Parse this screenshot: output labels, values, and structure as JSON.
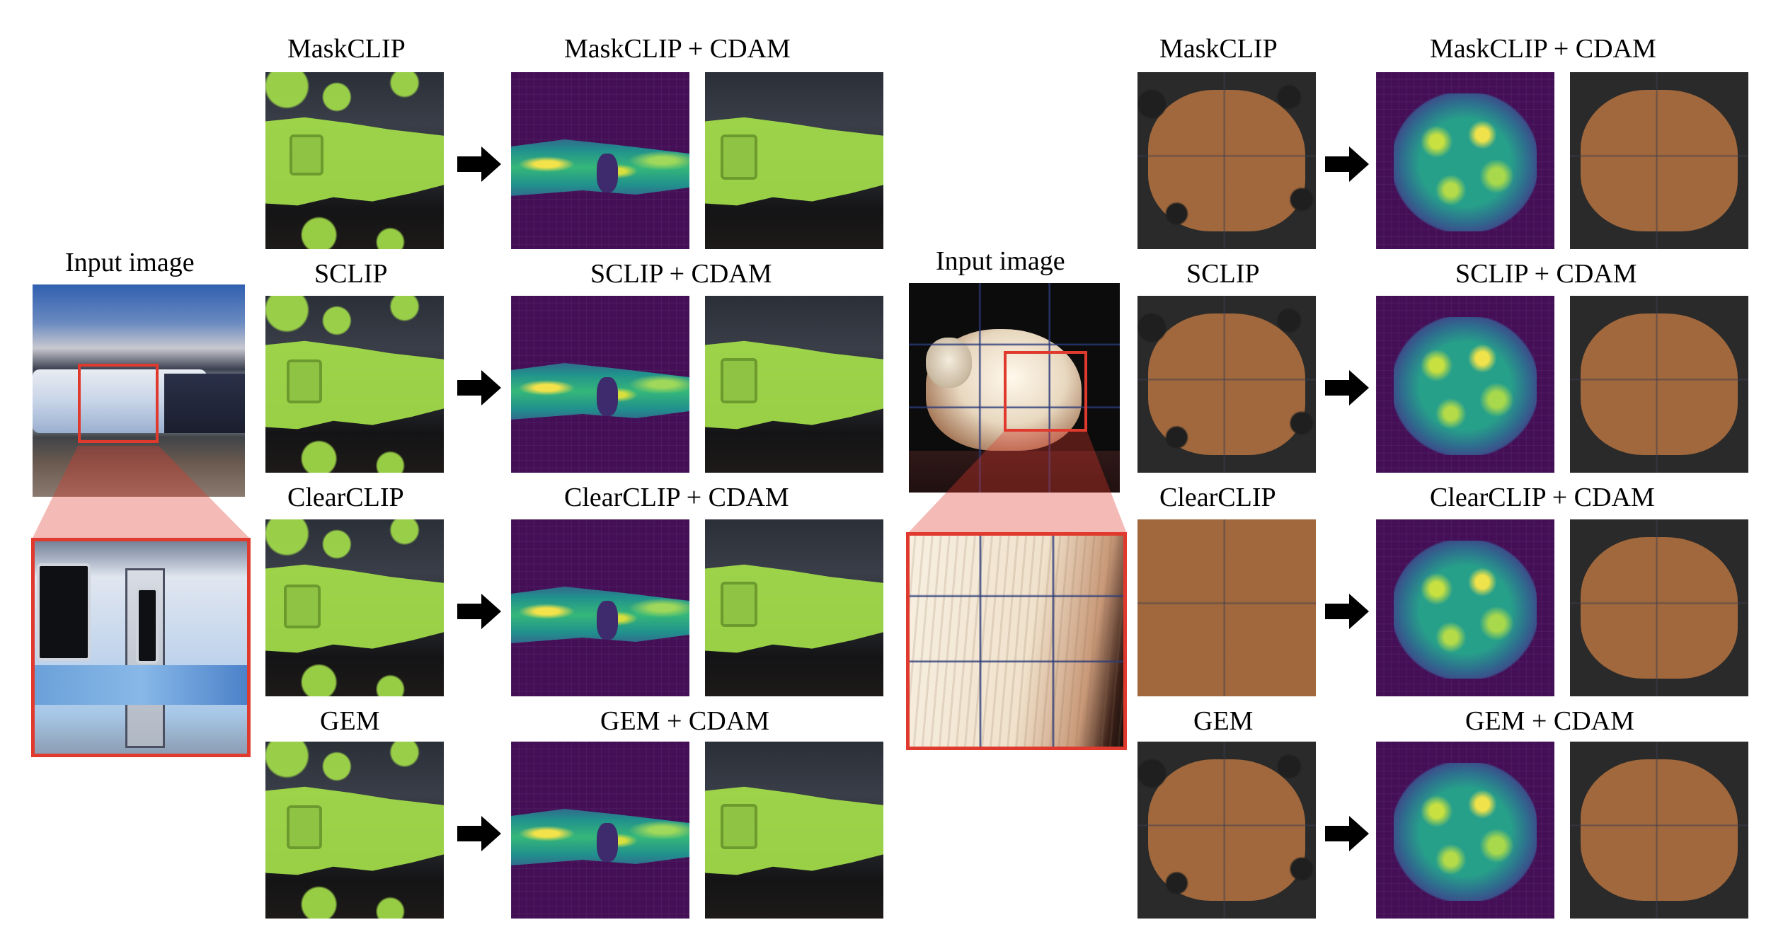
{
  "left_group": {
    "input_label": "Input image",
    "rows": [
      {
        "method": "MaskCLIP",
        "cdam": "MaskCLIP  + CDAM"
      },
      {
        "method": "SCLIP",
        "cdam": "SCLIP  + CDAM"
      },
      {
        "method": "ClearCLIP",
        "cdam": "ClearCLIP  + CDAM"
      },
      {
        "method": "GEM",
        "cdam": "GEM + CDAM"
      }
    ]
  },
  "right_group": {
    "input_label": "Input image",
    "rows": [
      {
        "method": "MaskCLIP",
        "cdam": "MaskCLIP  + CDAM"
      },
      {
        "method": "SCLIP",
        "cdam": "SCLIP  + CDAM"
      },
      {
        "method": "ClearCLIP",
        "cdam": "ClearCLIP  + CDAM"
      },
      {
        "method": "GEM",
        "cdam": "GEM + CDAM"
      }
    ]
  },
  "colors": {
    "highlight_box": "#e03a2e",
    "train_segmentation": "#a5e04a",
    "sheep_segmentation": "#a76c3d",
    "heatmap_low": "#440f56",
    "heatmap_high": "#f4e24a"
  },
  "icons": [
    "right-arrow-icon"
  ]
}
